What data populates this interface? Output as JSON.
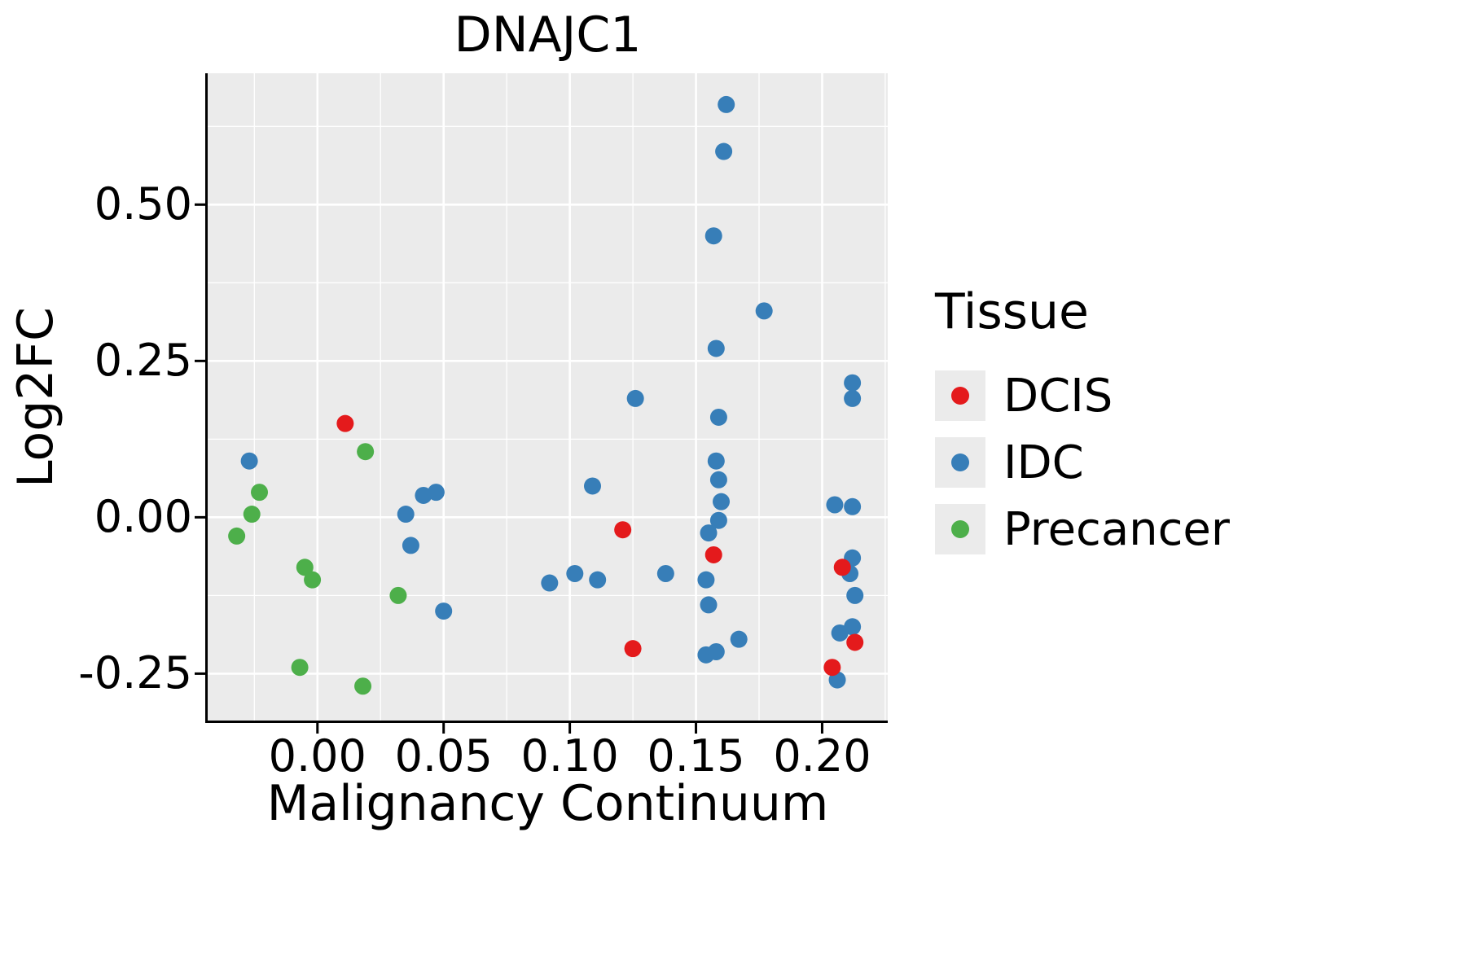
{
  "chart_data": {
    "type": "scatter",
    "title": "DNAJC1",
    "xlabel": "Malignancy Continuum",
    "ylabel": "Log2FC",
    "xlim": [
      -0.0435,
      0.226
    ],
    "ylim": [
      -0.325,
      0.71
    ],
    "grid": true,
    "panel_background": "#EBEBEB",
    "grid_color": "#FFFFFF",
    "axis_color": "#000000",
    "x_ticks": {
      "values": [
        0.0,
        0.05,
        0.1,
        0.15,
        0.2
      ],
      "labels": [
        "0.00",
        "0.05",
        "0.10",
        "0.15",
        "0.20"
      ]
    },
    "y_ticks": {
      "values": [
        -0.25,
        0.0,
        0.25,
        0.5
      ],
      "labels": [
        "-0.25",
        "0.00",
        "0.25",
        "0.50"
      ]
    },
    "x_minor_ticks": [
      -0.025,
      0.025,
      0.075,
      0.125,
      0.175,
      0.225
    ],
    "y_minor_ticks": [
      -0.125,
      0.125,
      0.375,
      0.625
    ],
    "legend": {
      "title": "Tissue",
      "position": "right"
    },
    "series": [
      {
        "name": "DCIS",
        "color": "#E41A1C",
        "points": [
          [
            0.011,
            0.15
          ],
          [
            0.121,
            -0.02
          ],
          [
            0.125,
            -0.21
          ],
          [
            0.157,
            -0.06
          ],
          [
            0.208,
            -0.08
          ],
          [
            0.204,
            -0.24
          ],
          [
            0.213,
            -0.2
          ]
        ]
      },
      {
        "name": "IDC",
        "color": "#377EB8",
        "points": [
          [
            -0.027,
            0.09
          ],
          [
            0.035,
            0.005
          ],
          [
            0.037,
            -0.045
          ],
          [
            0.042,
            0.035
          ],
          [
            0.047,
            0.04
          ],
          [
            0.05,
            -0.15
          ],
          [
            0.092,
            -0.105
          ],
          [
            0.102,
            -0.09
          ],
          [
            0.109,
            0.05
          ],
          [
            0.111,
            -0.1
          ],
          [
            0.126,
            0.19
          ],
          [
            0.138,
            -0.09
          ],
          [
            0.162,
            0.66
          ],
          [
            0.161,
            0.585
          ],
          [
            0.157,
            0.45
          ],
          [
            0.158,
            0.27
          ],
          [
            0.159,
            0.16
          ],
          [
            0.158,
            0.09
          ],
          [
            0.159,
            0.06
          ],
          [
            0.16,
            0.025
          ],
          [
            0.159,
            -0.005
          ],
          [
            0.155,
            -0.025
          ],
          [
            0.154,
            -0.1
          ],
          [
            0.155,
            -0.14
          ],
          [
            0.154,
            -0.22
          ],
          [
            0.158,
            -0.215
          ],
          [
            0.167,
            -0.195
          ],
          [
            0.177,
            0.33
          ],
          [
            0.205,
            0.02
          ],
          [
            0.212,
            0.017
          ],
          [
            0.212,
            0.215
          ],
          [
            0.212,
            0.19
          ],
          [
            0.212,
            -0.065
          ],
          [
            0.211,
            -0.09
          ],
          [
            0.213,
            -0.125
          ],
          [
            0.212,
            -0.175
          ],
          [
            0.207,
            -0.185
          ],
          [
            0.206,
            -0.26
          ]
        ]
      },
      {
        "name": "Precancer",
        "color": "#4DAF4A",
        "points": [
          [
            -0.032,
            -0.03
          ],
          [
            -0.026,
            0.005
          ],
          [
            -0.023,
            0.04
          ],
          [
            -0.005,
            -0.08
          ],
          [
            -0.002,
            -0.1
          ],
          [
            -0.007,
            -0.24
          ],
          [
            0.018,
            -0.27
          ],
          [
            0.019,
            0.105
          ],
          [
            0.032,
            -0.125
          ]
        ]
      }
    ]
  }
}
